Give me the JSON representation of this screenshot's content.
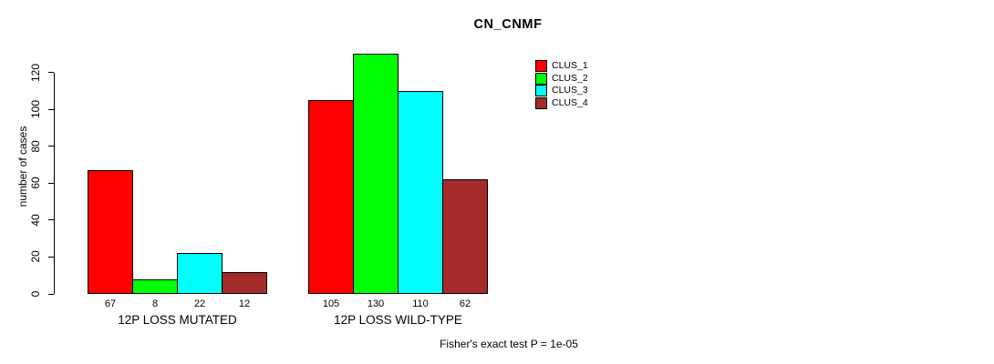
{
  "chart_data": {
    "type": "bar",
    "title": "CN_CNMF",
    "xlabel": "",
    "ylabel": "number of cases",
    "ylim": [
      0,
      130
    ],
    "yticks": [
      0,
      20,
      40,
      60,
      80,
      100,
      120
    ],
    "grid": false,
    "legend_position": "top-right",
    "bar_value_labels_shown": true,
    "categories": [
      "12P LOSS MUTATED",
      "12P LOSS WILD-TYPE"
    ],
    "series": [
      {
        "name": "CLUS_1",
        "color": "#ff0000",
        "values": [
          67,
          105
        ]
      },
      {
        "name": "CLUS_2",
        "color": "#00ff00",
        "values": [
          8,
          130
        ]
      },
      {
        "name": "CLUS_3",
        "color": "#00ffff",
        "values": [
          22,
          110
        ]
      },
      {
        "name": "CLUS_4",
        "color": "#a52a2a",
        "values": [
          12,
          62
        ]
      }
    ],
    "footnote": "Fisher's exact test P = 1e-05"
  }
}
